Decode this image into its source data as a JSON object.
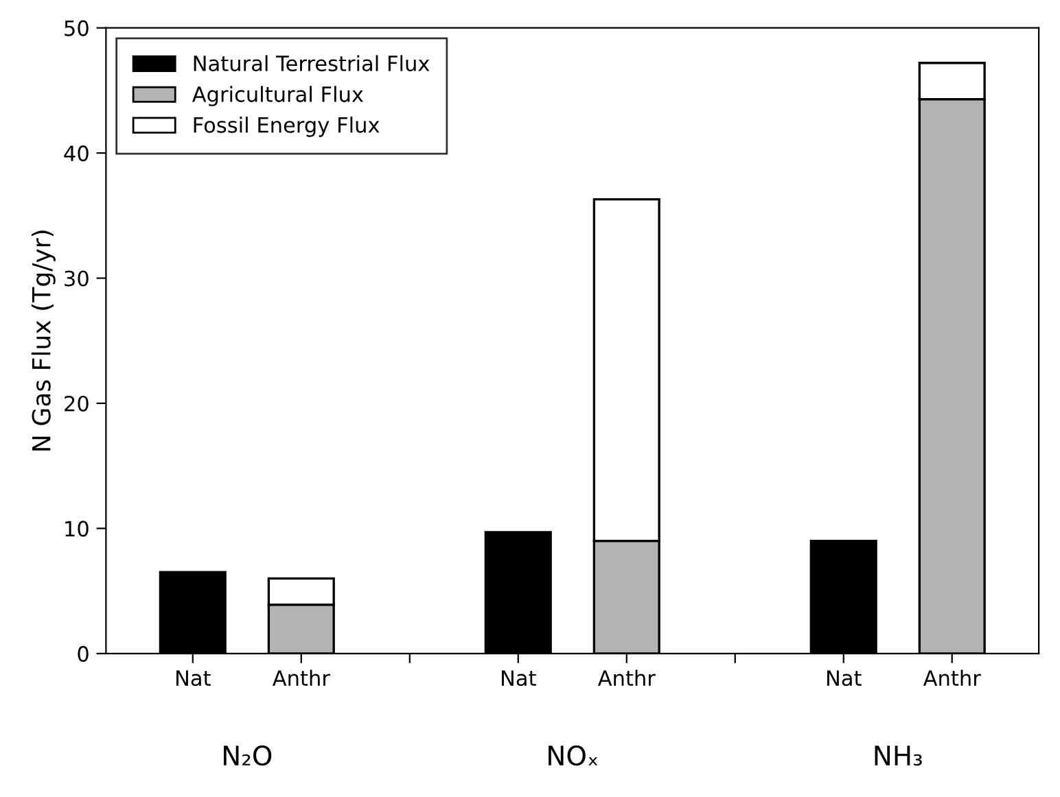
{
  "chart_data": {
    "type": "bar",
    "ylabel": "N Gas Flux (Tg/yr)",
    "categories": [
      "Nat",
      "Anthr",
      null,
      "Nat",
      "Anthr",
      null,
      "Nat",
      "Anthr"
    ],
    "series": [
      {
        "name": "Natural Terrestrial Flux",
        "color": "#000000",
        "values": [
          6.5,
          null,
          null,
          9.7,
          null,
          null,
          9.0,
          null
        ]
      },
      {
        "name": "Agricultural Flux",
        "color": "#b3b3b3",
        "values": [
          null,
          3.9,
          null,
          null,
          9.0,
          null,
          null,
          44.3
        ]
      },
      {
        "name": "Fossil Energy Flux",
        "color": "#ffffff",
        "values": [
          null,
          2.1,
          null,
          null,
          27.3,
          null,
          null,
          2.9
        ]
      }
    ],
    "stacked": true,
    "ylim": [
      0,
      50
    ],
    "yticks": [
      0,
      10,
      20,
      30,
      40,
      50
    ],
    "grid": false,
    "legend": "top left",
    "annotations": [
      "N₂O",
      "NOₓ",
      "NH₃"
    ]
  }
}
